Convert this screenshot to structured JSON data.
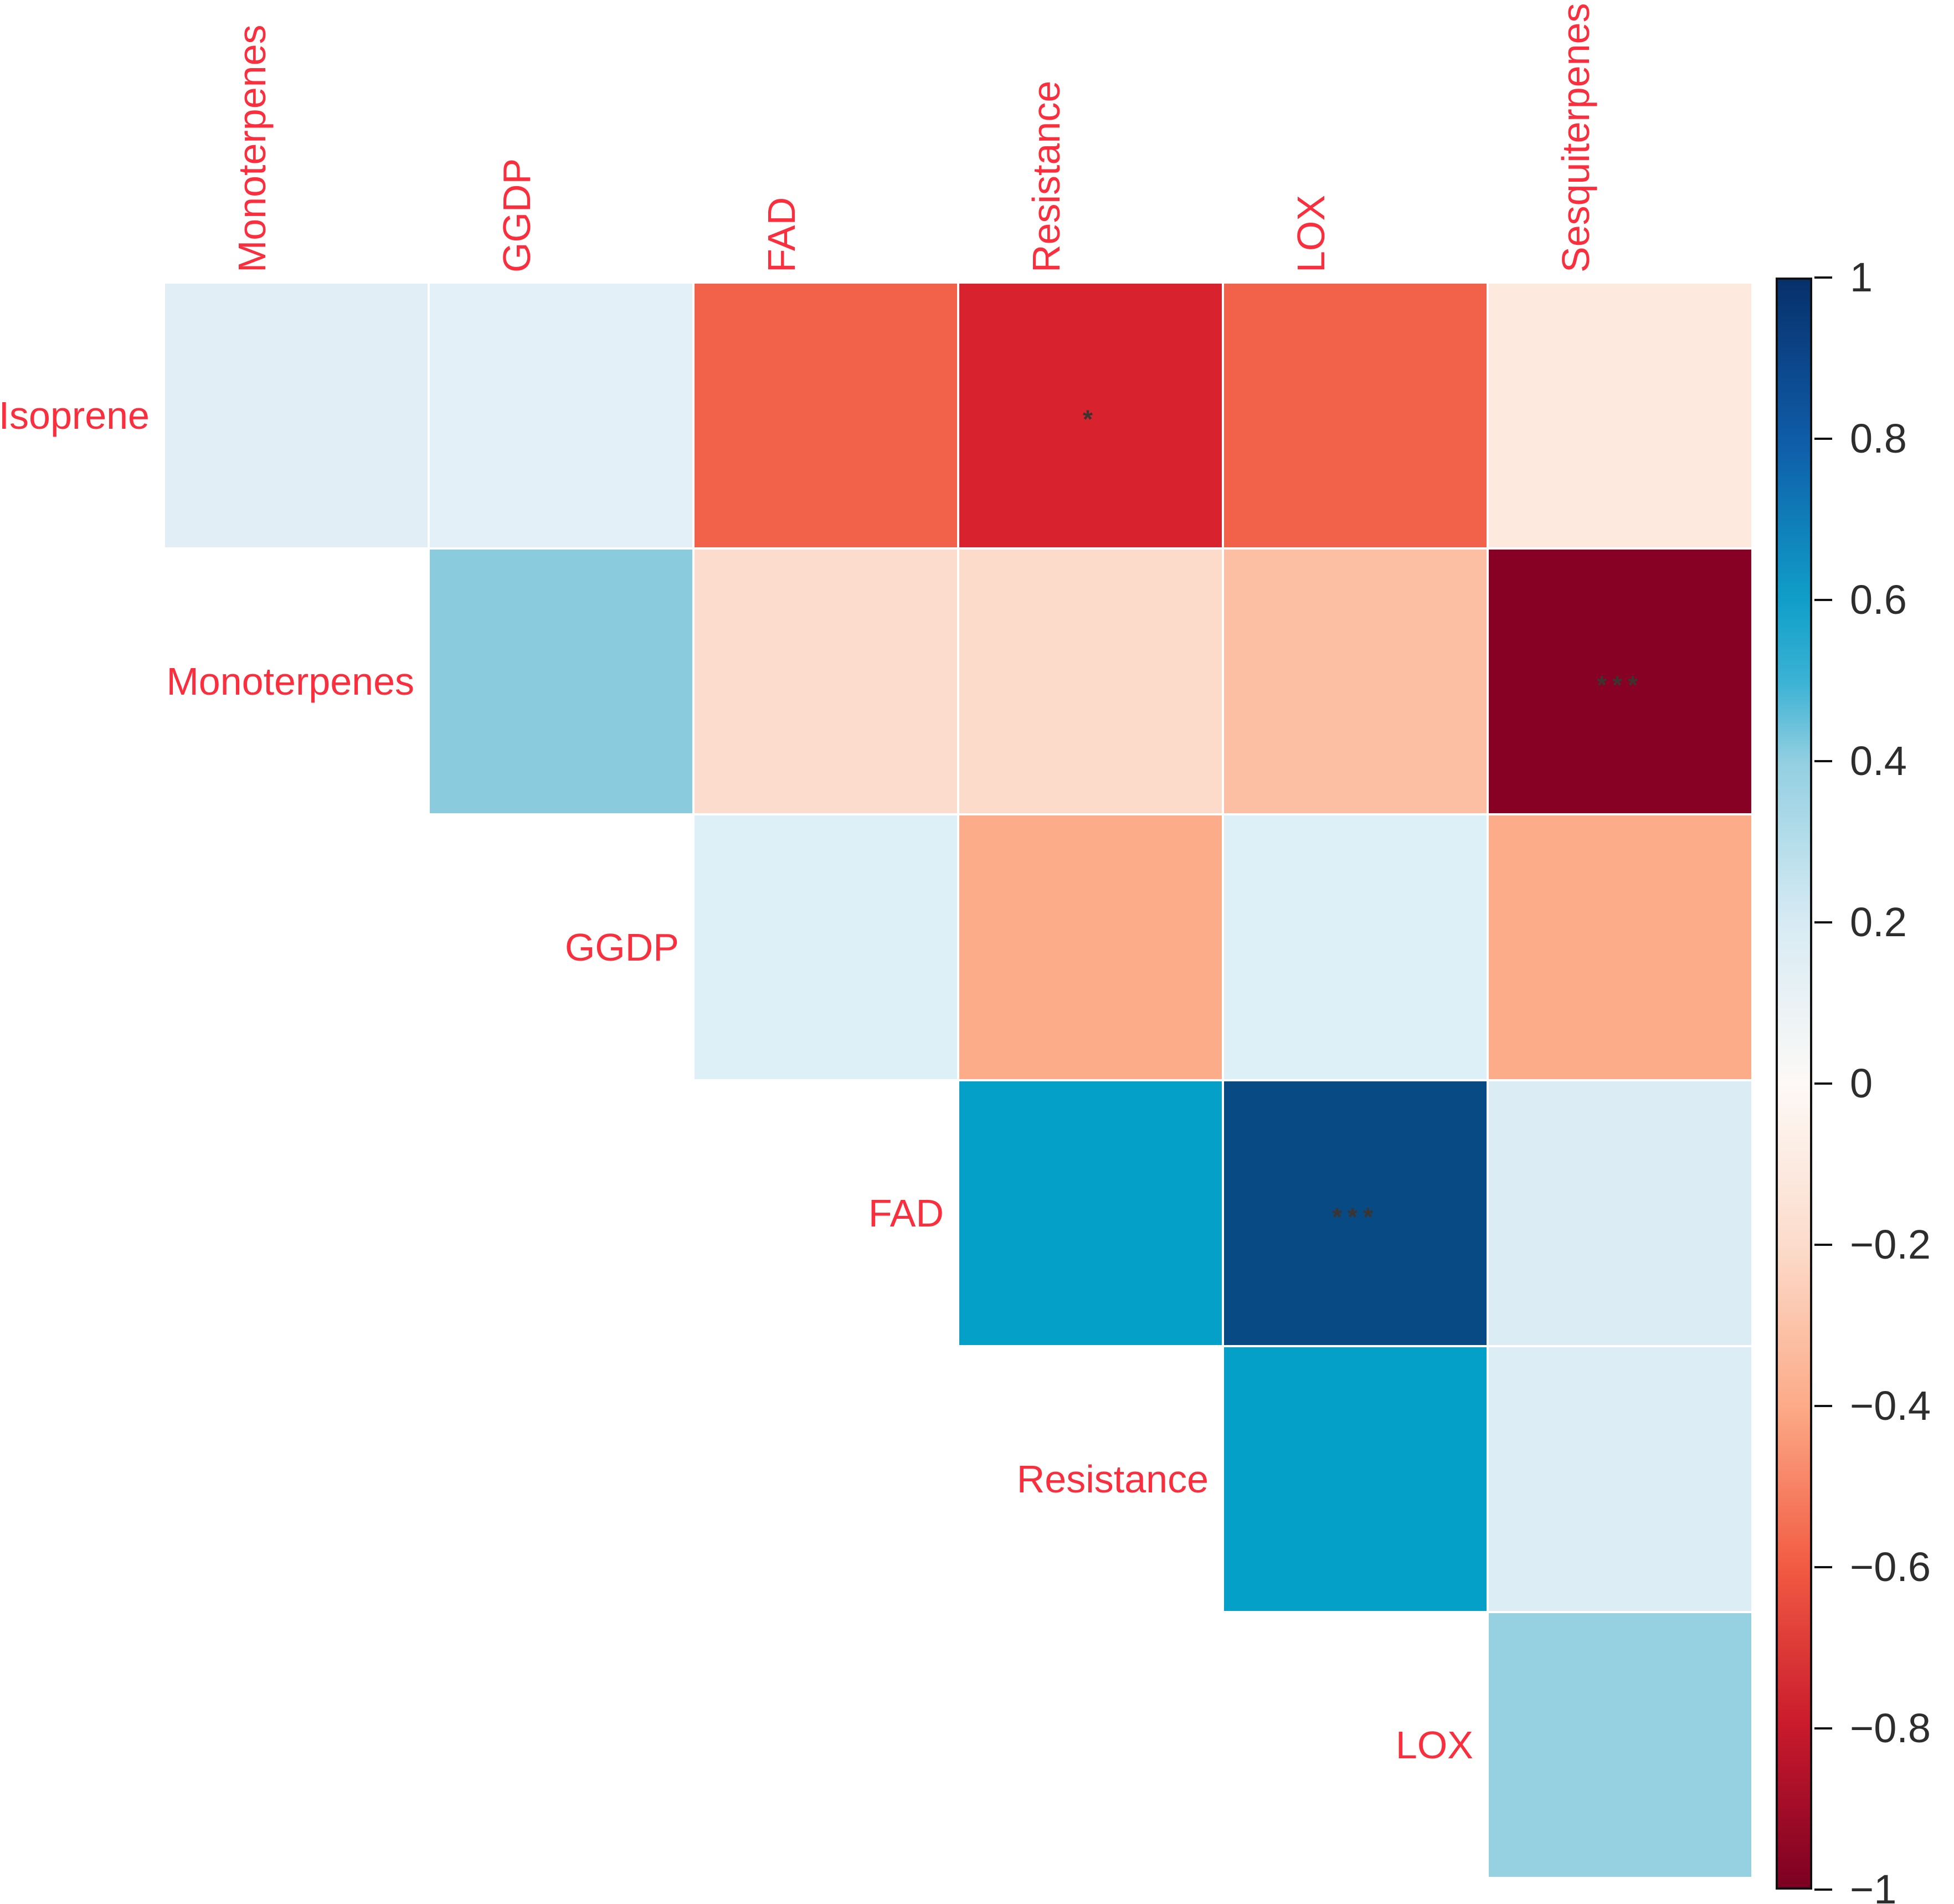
{
  "chart_data": {
    "type": "heatmap",
    "subtype": "correlation-matrix-upper-triangle",
    "title": "",
    "variables": [
      "Isoprene",
      "Monoterpenes",
      "GGDP",
      "FAD",
      "Resistance",
      "LOX",
      "Sesquiterpenes"
    ],
    "row_labels": [
      "Isoprene",
      "Monoterpenes",
      "GGDP",
      "FAD",
      "Resistance",
      "LOX"
    ],
    "column_labels": [
      "Monoterpenes",
      "GGDP",
      "FAD",
      "Resistance",
      "LOX",
      "Sesquiterpenes"
    ],
    "grid": "off",
    "legend_position": "right",
    "value_range": [
      -1,
      1
    ],
    "cells": [
      {
        "row": 0,
        "col": 0,
        "row_var": "Isoprene",
        "col_var": "Monoterpenes",
        "value": 0.12,
        "color": "#e1eef6",
        "sig": ""
      },
      {
        "row": 0,
        "col": 1,
        "row_var": "Isoprene",
        "col_var": "GGDP",
        "value": 0.1,
        "color": "#e3f0f7",
        "sig": ""
      },
      {
        "row": 0,
        "col": 2,
        "row_var": "Isoprene",
        "col_var": "FAD",
        "value": -0.6,
        "color": "#f2614a",
        "sig": ""
      },
      {
        "row": 0,
        "col": 3,
        "row_var": "Isoprene",
        "col_var": "Resistance",
        "value": -0.78,
        "color": "#d8232e",
        "sig": "*"
      },
      {
        "row": 0,
        "col": 4,
        "row_var": "Isoprene",
        "col_var": "LOX",
        "value": -0.6,
        "color": "#f2614a",
        "sig": ""
      },
      {
        "row": 0,
        "col": 5,
        "row_var": "Isoprene",
        "col_var": "Sesquiterpenes",
        "value": -0.12,
        "color": "#fde9dd",
        "sig": ""
      },
      {
        "row": 1,
        "col": 1,
        "row_var": "Monoterpenes",
        "col_var": "GGDP",
        "value": 0.42,
        "color": "#8bcbde",
        "sig": ""
      },
      {
        "row": 1,
        "col": 2,
        "row_var": "Monoterpenes",
        "col_var": "FAD",
        "value": -0.18,
        "color": "#fcdccc",
        "sig": ""
      },
      {
        "row": 1,
        "col": 3,
        "row_var": "Monoterpenes",
        "col_var": "Resistance",
        "value": -0.18,
        "color": "#fcdbcb",
        "sig": ""
      },
      {
        "row": 1,
        "col": 4,
        "row_var": "Monoterpenes",
        "col_var": "LOX",
        "value": -0.3,
        "color": "#fdbfa3",
        "sig": ""
      },
      {
        "row": 1,
        "col": 5,
        "row_var": "Monoterpenes",
        "col_var": "Sesquiterpenes",
        "value": -0.95,
        "color": "#860124",
        "sig": "***"
      },
      {
        "row": 2,
        "col": 2,
        "row_var": "GGDP",
        "col_var": "FAD",
        "value": 0.15,
        "color": "#def0f7",
        "sig": ""
      },
      {
        "row": 2,
        "col": 3,
        "row_var": "GGDP",
        "col_var": "Resistance",
        "value": -0.38,
        "color": "#fcac89",
        "sig": ""
      },
      {
        "row": 2,
        "col": 4,
        "row_var": "GGDP",
        "col_var": "LOX",
        "value": 0.15,
        "color": "#def0f7",
        "sig": ""
      },
      {
        "row": 2,
        "col": 5,
        "row_var": "GGDP",
        "col_var": "Sesquiterpenes",
        "value": -0.38,
        "color": "#fcac89",
        "sig": ""
      },
      {
        "row": 3,
        "col": 3,
        "row_var": "FAD",
        "col_var": "Resistance",
        "value": 0.6,
        "color": "#05a0c8",
        "sig": ""
      },
      {
        "row": 3,
        "col": 4,
        "row_var": "FAD",
        "col_var": "LOX",
        "value": 0.9,
        "color": "#084b84",
        "sig": "***"
      },
      {
        "row": 3,
        "col": 5,
        "row_var": "FAD",
        "col_var": "Sesquiterpenes",
        "value": 0.17,
        "color": "#dbecf4",
        "sig": ""
      },
      {
        "row": 4,
        "col": 4,
        "row_var": "Resistance",
        "col_var": "LOX",
        "value": 0.6,
        "color": "#05a0c8",
        "sig": ""
      },
      {
        "row": 4,
        "col": 5,
        "row_var": "Resistance",
        "col_var": "Sesquiterpenes",
        "value": 0.16,
        "color": "#dcedf5",
        "sig": ""
      },
      {
        "row": 5,
        "col": 5,
        "row_var": "LOX",
        "col_var": "Sesquiterpenes",
        "value": 0.4,
        "color": "#96d1e2",
        "sig": ""
      }
    ],
    "colorbar": {
      "tick_labels": [
        "1",
        "0.8",
        "0.6",
        "0.4",
        "0.2",
        "0",
        "−0.2",
        "−0.4",
        "−0.6",
        "−0.8",
        "−1"
      ],
      "tick_values": [
        1,
        0.8,
        0.6,
        0.4,
        0.2,
        0,
        -0.2,
        -0.4,
        -0.6,
        -0.8,
        -1
      ],
      "gradient_stops": [
        {
          "v": 1.0,
          "color": "#07306b"
        },
        {
          "v": 0.8,
          "color": "#0f5ca8"
        },
        {
          "v": 0.6,
          "color": "#109fc9"
        },
        {
          "v": 0.5,
          "color": "#3bb2d4"
        },
        {
          "v": 0.4,
          "color": "#93cfe1"
        },
        {
          "v": 0.2,
          "color": "#d7ebf4"
        },
        {
          "v": 0.0,
          "color": "#fdf9f6"
        },
        {
          "v": -0.2,
          "color": "#fcdccc"
        },
        {
          "v": -0.4,
          "color": "#fcab88"
        },
        {
          "v": -0.6,
          "color": "#f25b43"
        },
        {
          "v": -0.8,
          "color": "#c91a2c"
        },
        {
          "v": -1.0,
          "color": "#7c0022"
        }
      ]
    },
    "colors": {
      "variable_label": "#fa2e3c",
      "significance_star": "#3c3430",
      "tick_label": "#2d2d2d",
      "colorbar_border": "#111111",
      "background": "#ffffff"
    }
  }
}
